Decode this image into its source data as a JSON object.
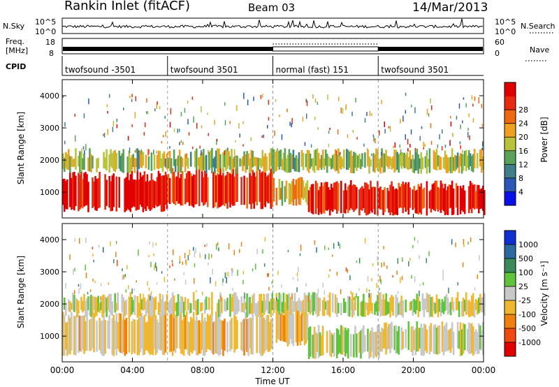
{
  "header": {
    "station": "Rankin Inlet (fitACF)",
    "beam": "Beam 03",
    "date": "14/Mar/2013"
  },
  "left_labels": {
    "nsky": "N.Sky",
    "freq_line1": "Freq.",
    "freq_line2": "[MHz]",
    "cpid": "CPID"
  },
  "right_labels": {
    "nsearch": "N.Search",
    "nave": "Nave"
  },
  "noise_axis": {
    "left_ticks": [
      "10^5",
      "10^0"
    ],
    "right_ticks": [
      "10^5",
      "10^0"
    ]
  },
  "freq_axis": {
    "left_ticks": [
      "18",
      "8"
    ],
    "right_ticks": [
      "60",
      "0"
    ]
  },
  "cpid_segments": [
    {
      "label": "twofsound -3501",
      "start_hour": 0,
      "end_hour": 6
    },
    {
      "label": "twofsound 3501",
      "start_hour": 6,
      "end_hour": 12
    },
    {
      "label": "normal (fast) 151",
      "start_hour": 12,
      "end_hour": 18
    },
    {
      "label": "twofsound 3501",
      "start_hour": 18,
      "end_hour": 24
    }
  ],
  "time_axis": {
    "label": "Time UT",
    "tick_labels": [
      "00:00",
      "04:00",
      "08:00",
      "12:00",
      "16:00",
      "20:00",
      "00:00"
    ],
    "tick_hours": [
      0,
      4,
      8,
      12,
      16,
      20,
      24
    ]
  },
  "panels": {
    "power": {
      "ylabel": "Slant Range [km]",
      "ytick_labels": [
        "1000",
        "2000",
        "3000",
        "4000"
      ],
      "ytick_values": [
        1000,
        2000,
        3000,
        4000
      ],
      "cbar_label": "Power [dB]",
      "cbar_ticks": [
        "4",
        "8",
        "12",
        "16",
        "20",
        "24",
        "28"
      ],
      "cbar_colors": [
        "#0a10e6",
        "#2a58b8",
        "#3f7f8a",
        "#5aa25a",
        "#b8c23a",
        "#f0a020",
        "#ee6a12",
        "#e82a10",
        "#e00000"
      ]
    },
    "velocity": {
      "ylabel": "Slant Range [km]",
      "ytick_labels": [
        "1000",
        "2000",
        "3000",
        "4000"
      ],
      "ytick_values": [
        1000,
        2000,
        3000,
        4000
      ],
      "cbar_label": "Velocity [m s⁻¹]",
      "cbar_ticks": [
        "1000",
        "500",
        "100",
        "25",
        "-25",
        "-100",
        "-500",
        "-1000"
      ],
      "cbar_colors": [
        "#1030d0",
        "#2a6aa0",
        "#3a8a5a",
        "#5ec43a",
        "#c8c8c8",
        "#f0b830",
        "#f08010",
        "#f04a10",
        "#e00000"
      ]
    }
  },
  "chart_data": {
    "type": "heatmap",
    "title": "Rankin Inlet (fitACF)  Beam 03  14/Mar/2013",
    "xlabel": "Time UT",
    "ylabel": "Slant Range [km]",
    "xlim_hours": [
      0,
      24
    ],
    "ylim_km": [
      200,
      4500
    ],
    "panels": [
      {
        "name": "Power",
        "units": "dB",
        "color_range": [
          0,
          30
        ],
        "echo_bands": [
          {
            "start_hour": 0,
            "end_hour": 6,
            "range_km": [
              500,
              1500
            ],
            "typical_value": 28
          },
          {
            "start_hour": 6,
            "end_hour": 12,
            "range_km": [
              600,
              1600
            ],
            "typical_value": 26
          },
          {
            "start_hour": 12,
            "end_hour": 14,
            "range_km": [
              700,
              1300
            ],
            "typical_value": 18
          },
          {
            "start_hour": 14,
            "end_hour": 24,
            "range_km": [
              400,
              1200
            ],
            "typical_value": 27
          },
          {
            "start_hour": 0,
            "end_hour": 24,
            "range_km": [
              1700,
              2200
            ],
            "typical_value": 14
          }
        ]
      },
      {
        "name": "Velocity",
        "units": "m s^-1",
        "color_range": [
          -1000,
          1000
        ],
        "echo_bands": [
          {
            "start_hour": 0,
            "end_hour": 12,
            "range_km": [
              500,
              1600
            ],
            "typical_value": -150
          },
          {
            "start_hour": 12,
            "end_hour": 14,
            "range_km": [
              800,
              1800
            ],
            "typical_value": -200
          },
          {
            "start_hour": 14,
            "end_hour": 18,
            "range_km": [
              400,
              1200
            ],
            "typical_value": 50
          },
          {
            "start_hour": 18,
            "end_hour": 24,
            "range_km": [
              500,
              1300
            ],
            "typical_value": 0
          },
          {
            "start_hour": 0,
            "end_hour": 24,
            "range_km": [
              1700,
              2200
            ],
            "typical_value": -40
          }
        ]
      }
    ],
    "noise_sky_range": [
      1,
      100000
    ],
    "frequency_mhz_range": [
      8,
      18
    ],
    "nave_range": [
      0,
      60
    ],
    "grid": false
  }
}
